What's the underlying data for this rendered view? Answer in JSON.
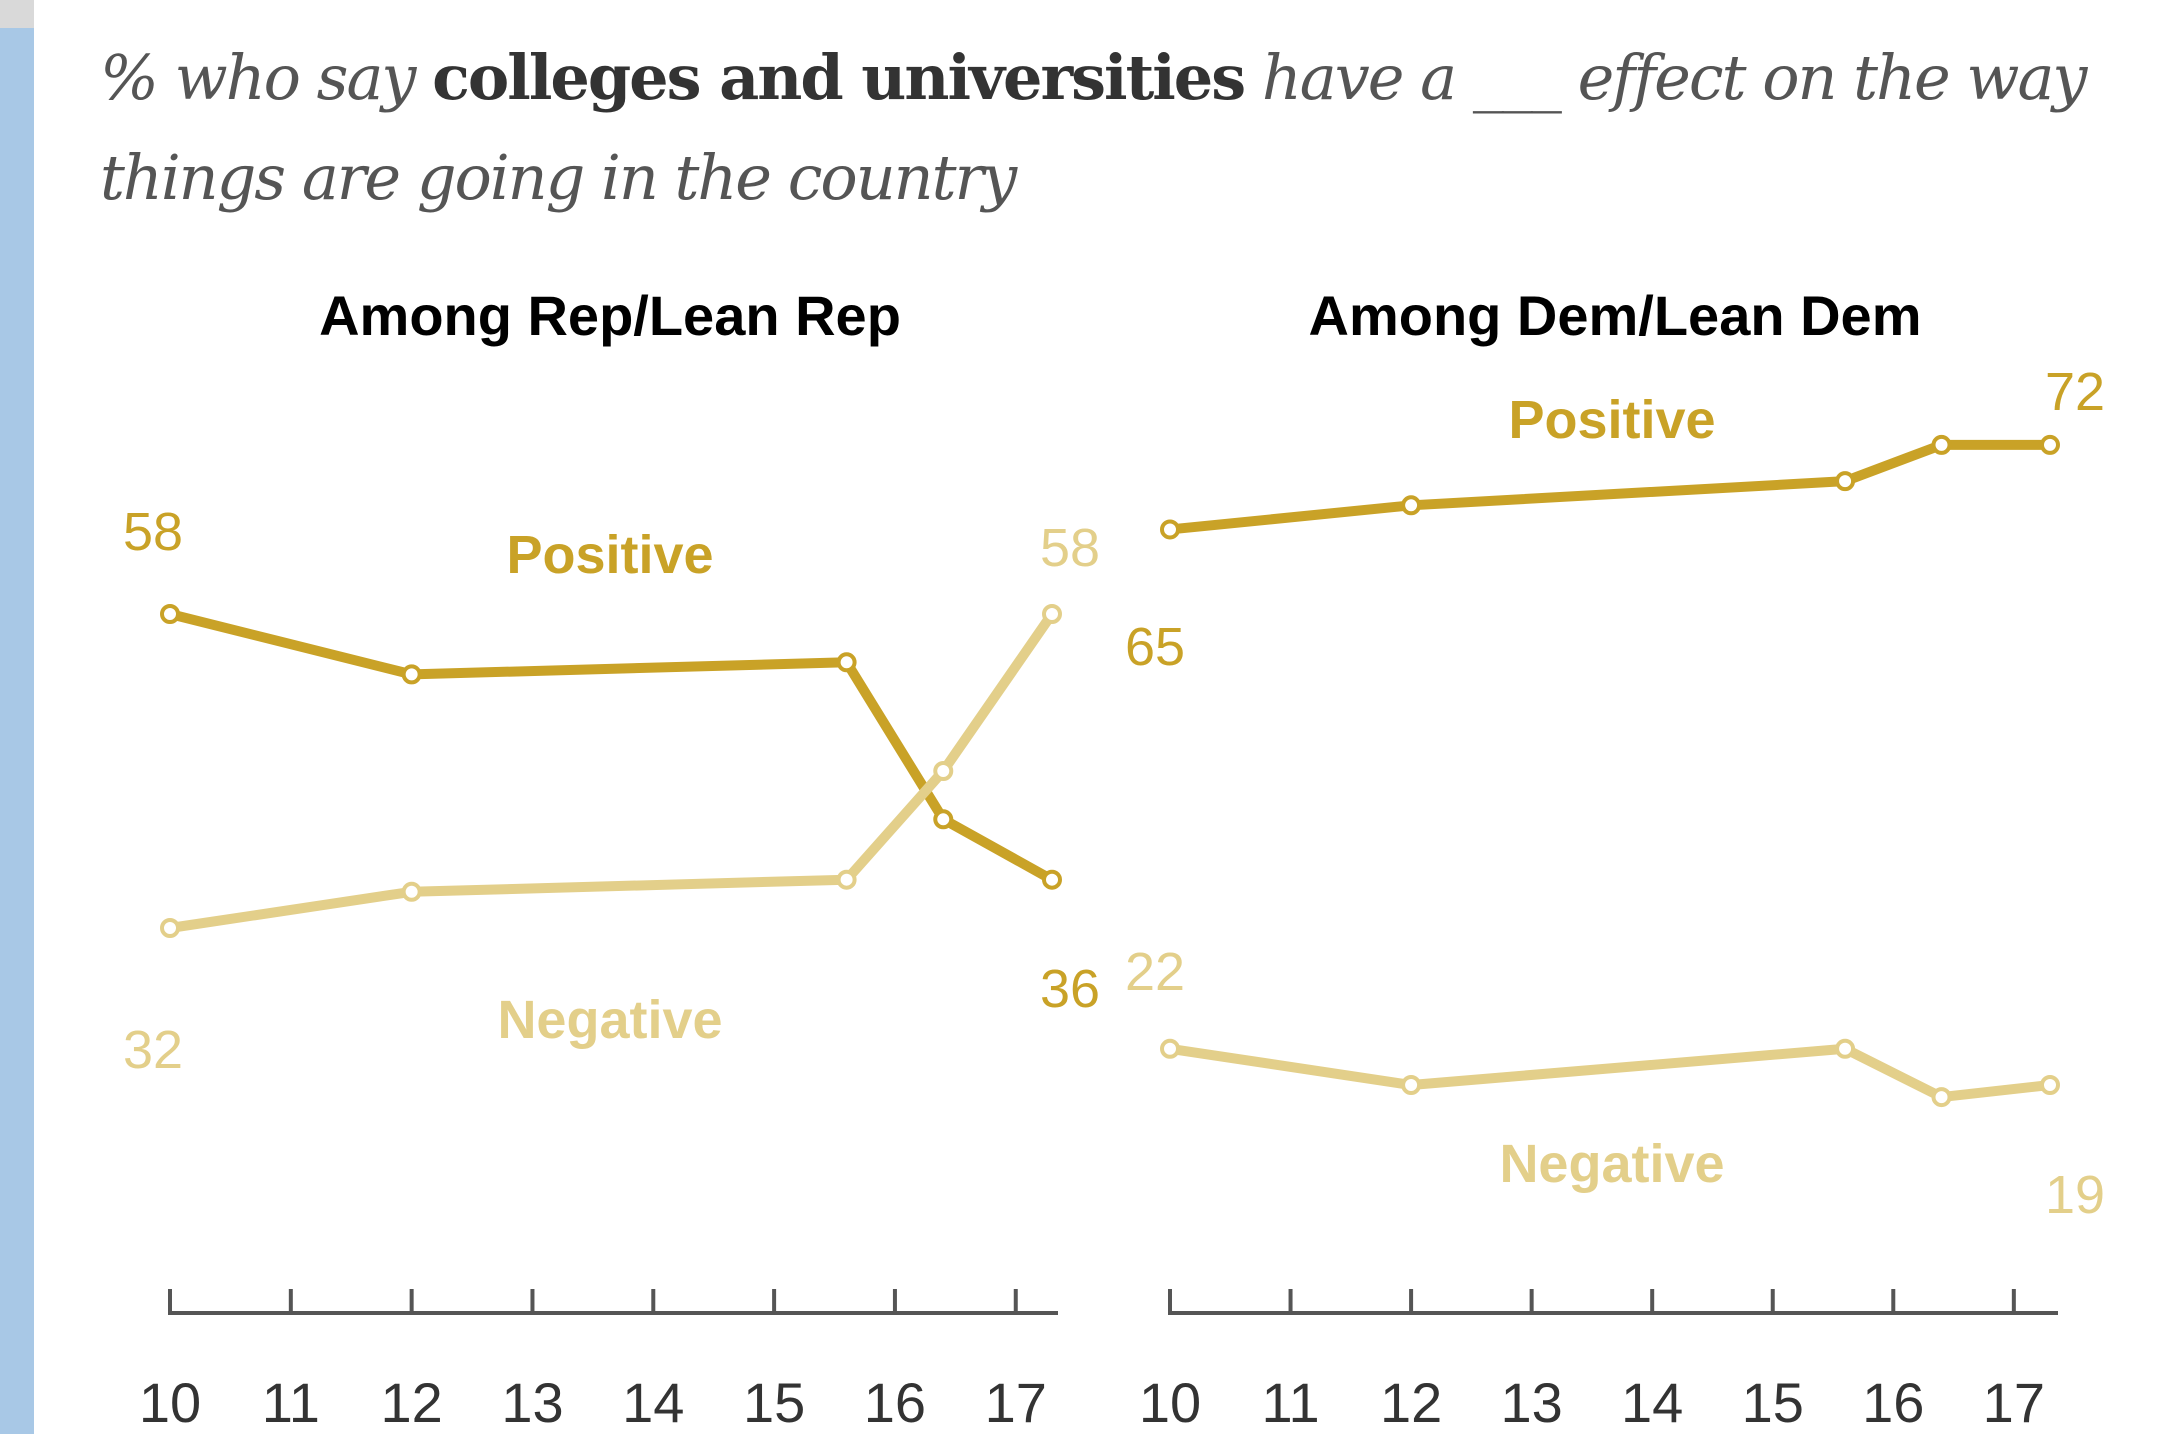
{
  "subtitle": {
    "prefix": "% who say ",
    "emphasis": "colleges and universities",
    "suffix": " have a ___ effect on the way things are going in the country"
  },
  "colors": {
    "positive": "#c9a227",
    "negative": "#e3cf8a",
    "axis": "#555555"
  },
  "chart_data": [
    {
      "type": "line",
      "title": "Among Rep/Lean Rep",
      "x_ticks": [
        "10",
        "11",
        "12",
        "13",
        "14",
        "15",
        "16",
        "17"
      ],
      "xlim": [
        2010,
        2017.4
      ],
      "ylim": [
        10,
        80
      ],
      "series": [
        {
          "name": "Positive",
          "x": [
            2010,
            2012,
            2015.6,
            2016.4,
            2017.3
          ],
          "values": [
            58,
            53,
            54,
            41,
            36
          ]
        },
        {
          "name": "Negative",
          "x": [
            2010,
            2012,
            2015.6,
            2016.4,
            2017.3
          ],
          "values": [
            32,
            35,
            36,
            45,
            58
          ]
        }
      ],
      "data_labels": [
        {
          "series": "Positive",
          "text": "58"
        },
        {
          "series": "Positive",
          "text": "36"
        },
        {
          "series": "Negative",
          "text": "32"
        },
        {
          "series": "Negative",
          "text": "58"
        }
      ]
    },
    {
      "type": "line",
      "title": "Among Dem/Lean Dem",
      "x_ticks": [
        "10",
        "11",
        "12",
        "13",
        "14",
        "15",
        "16",
        "17"
      ],
      "xlim": [
        2010,
        2017.4
      ],
      "ylim": [
        10,
        80
      ],
      "series": [
        {
          "name": "Positive",
          "x": [
            2010,
            2012,
            2015.6,
            2016.4,
            2017.3
          ],
          "values": [
            65,
            67,
            69,
            72,
            72
          ]
        },
        {
          "name": "Negative",
          "x": [
            2010,
            2012,
            2015.6,
            2016.4,
            2017.3
          ],
          "values": [
            22,
            19,
            22,
            18,
            19
          ]
        }
      ],
      "data_labels": [
        {
          "series": "Positive",
          "text": "65"
        },
        {
          "series": "Positive",
          "text": "72"
        },
        {
          "series": "Negative",
          "text": "22"
        },
        {
          "series": "Negative",
          "text": "19"
        }
      ]
    }
  ]
}
